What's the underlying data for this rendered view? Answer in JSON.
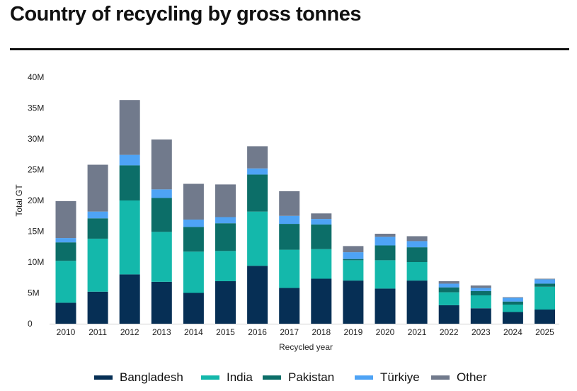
{
  "page": {
    "title": "Country of recycling by gross tonnes"
  },
  "colors": {
    "Bangladesh": "#062f55",
    "India": "#14b8ab",
    "Pakistan": "#0c6e68",
    "Türkiye": "#4ea3f5",
    "Other": "#717a8c"
  },
  "chart_data": {
    "type": "bar",
    "stacked": true,
    "title": "Country of recycling by gross tonnes",
    "xlabel": "Recycled year",
    "ylabel": "Total GT",
    "ylim": [
      0,
      40
    ],
    "yticks": [
      0,
      5,
      10,
      15,
      20,
      25,
      30,
      35,
      40
    ],
    "ytick_labels": [
      "0",
      "5M",
      "10M",
      "15M",
      "20M",
      "25M",
      "30M",
      "35M",
      "40M"
    ],
    "grid": false,
    "legend": "bottom",
    "categories": [
      "2010",
      "2011",
      "2012",
      "2013",
      "2014",
      "2015",
      "2016",
      "2017",
      "2018",
      "2019",
      "2020",
      "2021",
      "2022",
      "2023",
      "2024",
      "2025"
    ],
    "series": [
      {
        "name": "Bangladesh",
        "values": [
          3.4,
          5.2,
          8.0,
          6.8,
          5.0,
          6.9,
          9.4,
          5.8,
          7.3,
          7.0,
          5.7,
          7.0,
          3.0,
          2.5,
          1.9,
          2.3
        ]
      },
      {
        "name": "India",
        "values": [
          6.8,
          8.6,
          12.0,
          8.1,
          6.7,
          4.9,
          8.8,
          6.2,
          4.8,
          3.3,
          4.6,
          3.0,
          2.1,
          2.1,
          1.2,
          3.7
        ]
      },
      {
        "name": "Pakistan",
        "values": [
          3.0,
          3.3,
          5.7,
          5.5,
          4.0,
          4.5,
          6.0,
          4.2,
          4.0,
          0.2,
          2.4,
          2.4,
          0.8,
          0.7,
          0.5,
          0.5
        ]
      },
      {
        "name": "Türkiye",
        "values": [
          0.7,
          1.1,
          1.7,
          1.4,
          1.2,
          1.0,
          1.0,
          1.3,
          0.9,
          1.1,
          1.4,
          1.0,
          0.6,
          0.5,
          0.6,
          0.7
        ]
      },
      {
        "name": "Other",
        "values": [
          6.0,
          7.6,
          8.9,
          8.1,
          5.8,
          5.3,
          3.6,
          4.0,
          0.9,
          1.0,
          0.5,
          0.8,
          0.4,
          0.4,
          0.1,
          0.1
        ]
      }
    ]
  }
}
